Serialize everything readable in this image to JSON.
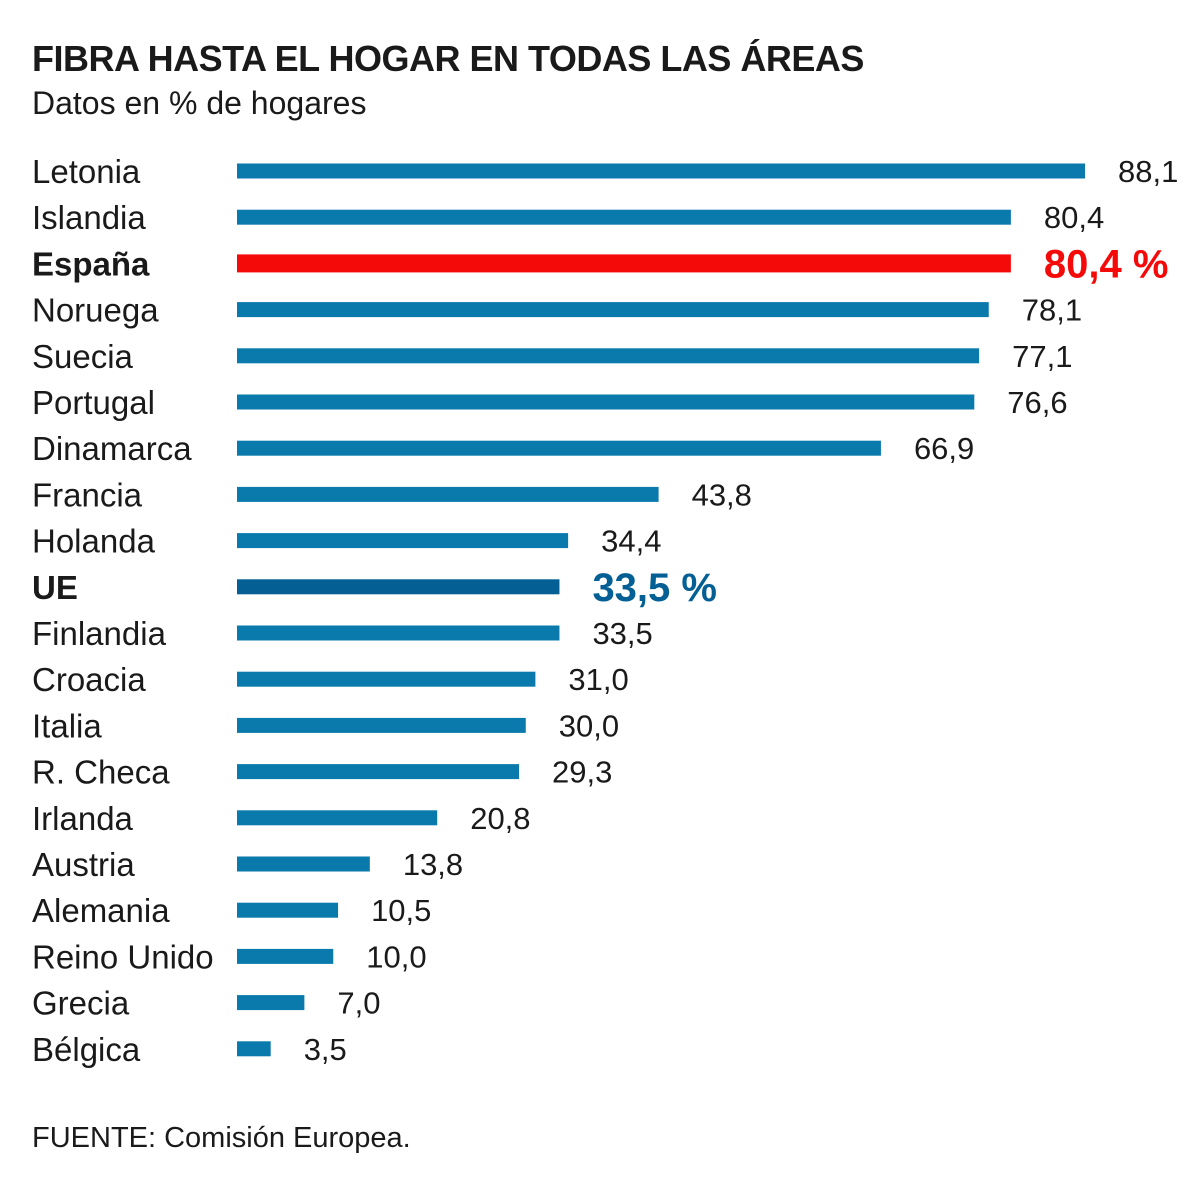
{
  "title": "FIBRA HASTA EL HOGAR EN TODAS LAS ÁREAS",
  "subtitle": "Datos en %  de hogares",
  "source": "FUENTE: Comisión Europea.",
  "colors": {
    "bar": "#0a7aad",
    "spain": "#f50a0a",
    "eu": "#035f94",
    "text": "#1a1a1a"
  },
  "chart_data": {
    "type": "bar",
    "orientation": "horizontal",
    "title": "FIBRA HASTA EL HOGAR EN TODAS LAS ÁREAS",
    "subtitle": "Datos en %  de hogares",
    "categories": [
      "Letonia",
      "Islandia",
      "España",
      "Noruega",
      "Suecia",
      "Portugal",
      "Dinamarca",
      "Francia",
      "Holanda",
      "UE",
      "Finlandia",
      "Croacia",
      "Italia",
      "R. Checa",
      "Irlanda",
      "Austria",
      "Alemania",
      "Reino Unido",
      "Grecia",
      "Bélgica"
    ],
    "values": [
      88.1,
      80.4,
      80.4,
      78.1,
      77.1,
      76.6,
      66.9,
      43.8,
      34.4,
      33.5,
      33.5,
      31.0,
      30.0,
      29.3,
      20.8,
      13.8,
      10.5,
      10.0,
      7.0,
      3.5
    ],
    "value_labels": [
      "88,1",
      "80,4",
      "80,4 %",
      "78,1",
      "77,1",
      "76,6",
      "66,9",
      "43,8",
      "34,4",
      "33,5 %",
      "33,5",
      "31,0",
      "30,0",
      "29,3",
      "20,8",
      "13,8",
      "10,5",
      "10,0",
      "7,0",
      "3,5"
    ],
    "highlight": {
      "España": "spain",
      "UE": "eu"
    },
    "xlim": [
      0,
      88.1
    ],
    "grid": false,
    "legend": "none"
  }
}
